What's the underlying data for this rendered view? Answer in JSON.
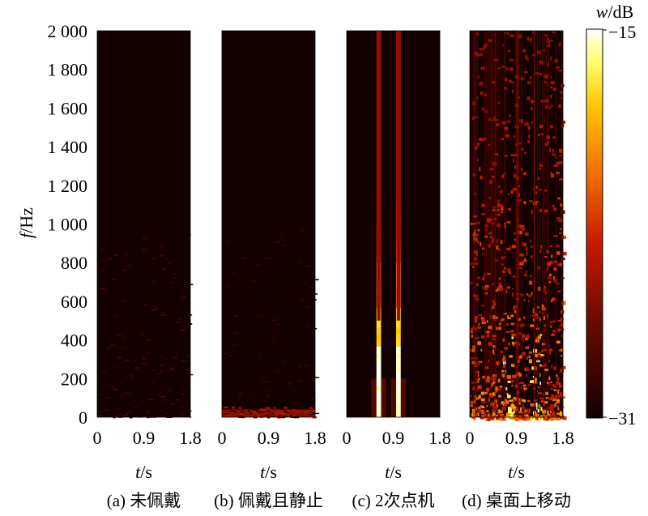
{
  "chart_data": {
    "type": "heatmap",
    "ylabel": {
      "var": "f",
      "unit": "/Hz"
    },
    "y_ticks": [
      {
        "value": 0,
        "label": "0"
      },
      {
        "value": 200,
        "label": "200"
      },
      {
        "value": 400,
        "label": "400"
      },
      {
        "value": 600,
        "label": "600"
      },
      {
        "value": 800,
        "label": "800"
      },
      {
        "value": 1000,
        "label": "1 000"
      },
      {
        "value": 1200,
        "label": "1 200"
      },
      {
        "value": 1400,
        "label": "1 400"
      },
      {
        "value": 1600,
        "label": "1 600"
      },
      {
        "value": 1800,
        "label": "1 800"
      },
      {
        "value": 2000,
        "label": "2 000"
      }
    ],
    "ylim": [
      0,
      2000
    ],
    "xlim": [
      0,
      1.8
    ],
    "x_ticks": [
      {
        "value": 0,
        "label": "0"
      },
      {
        "value": 0.9,
        "label": "0.9"
      },
      {
        "value": 1.8,
        "label": "1.8"
      }
    ],
    "xlabel": {
      "var": "t",
      "unit": "/s"
    },
    "colorbar": {
      "title_var": "w",
      "title_unit": "/dB",
      "max_label": "−15",
      "min_label": "−31",
      "range": [
        -31,
        -15
      ],
      "colormap": "hot"
    },
    "panels": [
      {
        "caption": "(a) 未佩戴",
        "background_db": -31,
        "components": [
          {
            "kind": "scattered_noise",
            "t_range": [
              0,
              1.8
            ],
            "f_range": [
              0,
              1000
            ],
            "level_db": -28
          }
        ]
      },
      {
        "caption": "(b) 佩戴且静止",
        "background_db": -31,
        "components": [
          {
            "kind": "low_band",
            "t_range": [
              0,
              1.8
            ],
            "f_range": [
              0,
              40
            ],
            "level_db": -26
          },
          {
            "kind": "scattered_noise",
            "t_range": [
              0,
              1.8
            ],
            "f_range": [
              0,
              1000
            ],
            "level_db": -29
          }
        ]
      },
      {
        "caption": "(c) 2次点机",
        "background_db": -31,
        "components": [
          {
            "kind": "tap",
            "t_center": 0.62,
            "t_width": 0.09,
            "f_max": 2000,
            "peak_db": -15
          },
          {
            "kind": "tap",
            "t_center": 1.0,
            "t_width": 0.09,
            "f_max": 2000,
            "peak_db": -15
          }
        ]
      },
      {
        "caption": "(d) 桌面上移动",
        "background_db": -31,
        "components": [
          {
            "kind": "broadband_motion",
            "t_range": [
              0,
              1.8
            ],
            "f_range": [
              0,
              2000
            ],
            "peak_db": -16,
            "hotspots_t": [
              0.75,
              1.25
            ]
          }
        ]
      }
    ]
  }
}
